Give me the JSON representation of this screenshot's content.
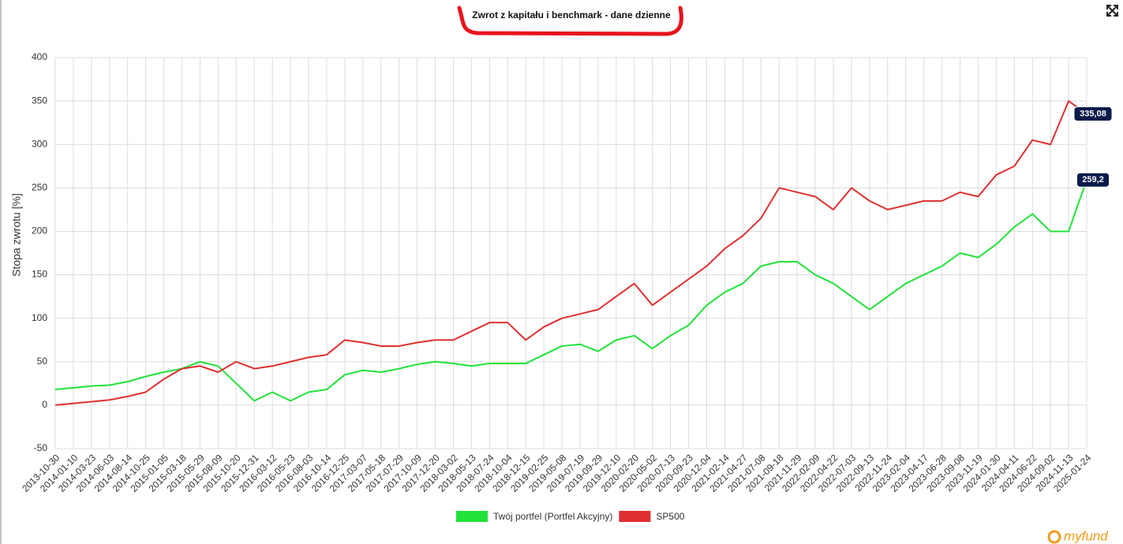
{
  "chart_data": {
    "type": "line",
    "title": "Zwrot z kapitału i benchmark - dane dzienne",
    "y_label": "Stopa zwrotu [%]",
    "logo": "myfund",
    "ylim": [
      -50,
      400
    ],
    "yticks": [
      -50,
      0,
      50,
      100,
      150,
      200,
      250,
      300,
      350,
      400
    ],
    "grid": true,
    "legend": "bottom",
    "x": [
      "2013-10-30",
      "2014-01-10",
      "2014-03-23",
      "2014-06-03",
      "2014-08-14",
      "2014-10-25",
      "2015-01-05",
      "2015-03-18",
      "2015-05-29",
      "2015-08-09",
      "2015-10-20",
      "2015-12-31",
      "2016-03-12",
      "2016-05-23",
      "2016-08-03",
      "2016-10-14",
      "2016-12-25",
      "2017-03-07",
      "2017-05-18",
      "2017-07-29",
      "2017-10-09",
      "2017-12-20",
      "2018-03-02",
      "2018-05-13",
      "2018-07-24",
      "2018-10-04",
      "2018-12-15",
      "2019-02-25",
      "2019-05-08",
      "2019-07-19",
      "2019-09-29",
      "2019-12-10",
      "2020-02-20",
      "2020-05-02",
      "2020-07-13",
      "2020-09-23",
      "2020-12-04",
      "2021-02-14",
      "2021-04-27",
      "2021-07-08",
      "2021-09-18",
      "2021-11-29",
      "2022-02-09",
      "2022-04-22",
      "2022-07-03",
      "2022-09-13",
      "2022-11-24",
      "2023-02-04",
      "2023-04-17",
      "2023-06-28",
      "2023-09-08",
      "2023-11-19",
      "2024-01-30",
      "2024-04-11",
      "2024-06-22",
      "2024-09-02",
      "2024-11-13",
      "2025-01-24"
    ],
    "series": [
      {
        "name": "Twój portfel (Portfel Akcyjny)",
        "color": "#22e23a",
        "values": [
          18,
          20,
          22,
          23,
          27,
          33,
          38,
          42,
          50,
          45,
          25,
          5,
          15,
          5,
          15,
          18,
          35,
          40,
          38,
          42,
          47,
          50,
          48,
          45,
          48,
          48,
          48,
          58,
          68,
          70,
          62,
          75,
          80,
          65,
          80,
          92,
          115,
          130,
          140,
          160,
          165,
          165,
          150,
          140,
          125,
          110,
          125,
          140,
          150,
          160,
          175,
          170,
          185,
          205,
          220,
          200,
          200,
          259.2
        ],
        "value_labels": [
          null,
          null,
          null,
          null,
          null,
          null,
          null,
          null,
          null,
          null,
          null,
          null,
          null,
          null,
          null,
          null,
          null,
          null,
          null,
          null,
          null,
          null,
          null,
          null,
          null,
          null,
          null,
          null,
          null,
          null,
          null,
          null,
          null,
          null,
          null,
          null,
          null,
          null,
          null,
          null,
          null,
          null,
          null,
          null,
          null,
          null,
          null,
          null,
          null,
          null,
          null,
          null,
          null,
          null,
          null,
          null,
          null,
          "259,2"
        ]
      },
      {
        "name": "SP500",
        "color": "#e03030",
        "values": [
          0,
          2,
          4,
          6,
          10,
          15,
          30,
          42,
          45,
          38,
          50,
          42,
          45,
          50,
          55,
          58,
          75,
          72,
          68,
          68,
          72,
          75,
          75,
          85,
          95,
          95,
          75,
          90,
          100,
          105,
          110,
          125,
          140,
          115,
          130,
          145,
          160,
          180,
          195,
          215,
          250,
          245,
          240,
          225,
          250,
          235,
          225,
          230,
          235,
          235,
          245,
          240,
          265,
          275,
          305,
          300,
          350,
          335.08
        ],
        "value_labels": [
          null,
          null,
          null,
          null,
          null,
          null,
          null,
          null,
          null,
          null,
          null,
          null,
          null,
          null,
          null,
          null,
          null,
          null,
          null,
          null,
          null,
          null,
          null,
          null,
          null,
          null,
          null,
          null,
          null,
          null,
          null,
          null,
          null,
          null,
          null,
          null,
          null,
          null,
          null,
          null,
          null,
          null,
          null,
          null,
          null,
          null,
          null,
          null,
          null,
          null,
          null,
          null,
          null,
          null,
          null,
          null,
          null,
          "335,08"
        ]
      }
    ]
  }
}
